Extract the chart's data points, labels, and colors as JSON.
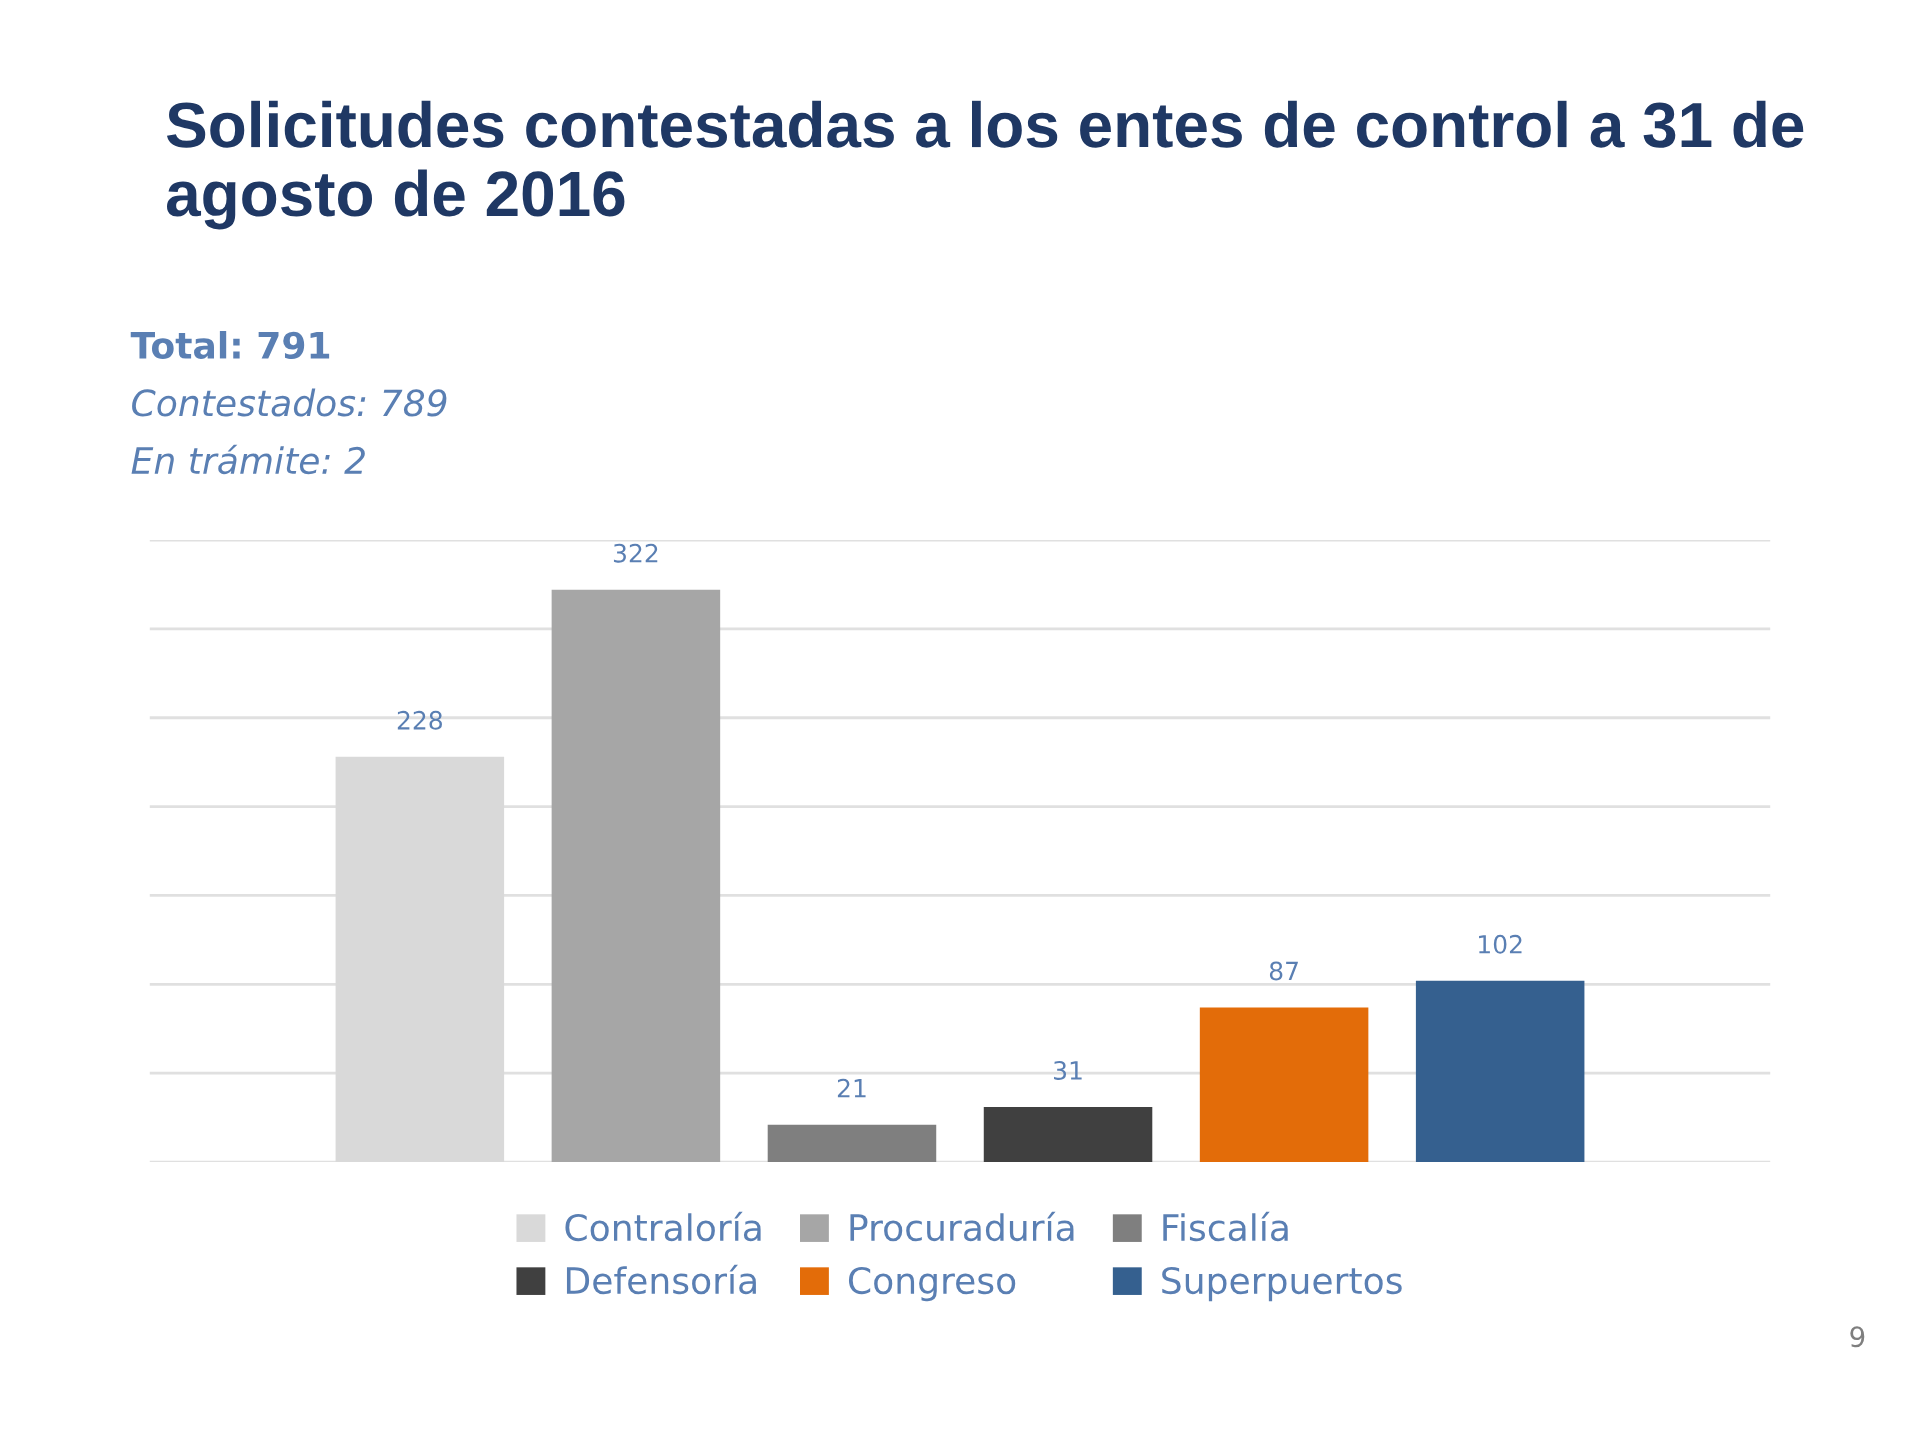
{
  "chart_data": {
    "type": "bar",
    "title": "Solicitudes contestadas a los entes de control a 31 de agosto de 2016",
    "annotations": [
      "Total: 791",
      "Contestados: 789",
      "En trámite: 2",
      "9"
    ],
    "categories": [
      null
    ],
    "series": [
      {
        "name": "Contraloría",
        "color": "#d9d9d9",
        "values": [
          228
        ]
      },
      {
        "name": "Procuraduría",
        "color": "#a6a6a6",
        "values": [
          322
        ]
      },
      {
        "name": "Fiscalía",
        "color": "#7f7f7f",
        "values": [
          21
        ]
      },
      {
        "name": "Defensoría",
        "color": "#404040",
        "values": [
          31
        ]
      },
      {
        "name": "Congreso",
        "color": "#e36c09",
        "values": [
          87
        ]
      },
      {
        "name": "Superpuertos",
        "color": "#35608f",
        "values": [
          102
        ]
      }
    ],
    "ylim": [
      0,
      350
    ],
    "yticks": [
      {
        "value": 0,
        "label": null
      },
      {
        "value": 50,
        "label": null
      },
      {
        "value": 100,
        "label": null
      },
      {
        "value": 150,
        "label": null
      },
      {
        "value": 200,
        "label": null
      },
      {
        "value": 250,
        "label": null
      },
      {
        "value": 300,
        "label": null
      },
      {
        "value": 350,
        "label": null
      }
    ],
    "grid": "y",
    "legend": "bottom",
    "data_labels": true
  }
}
